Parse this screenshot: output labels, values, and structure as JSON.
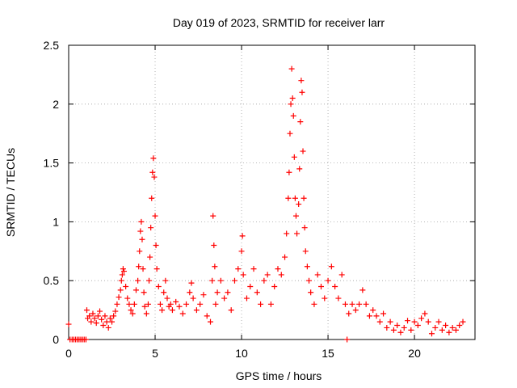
{
  "chart_data": {
    "type": "scatter",
    "title": "Day 019 of 2023, SRMTID for receiver larr",
    "xlabel": "GPS time / hours",
    "ylabel": "SRMTID / TECUs",
    "xlim": [
      0,
      23.5
    ],
    "ylim": [
      0,
      2.5
    ],
    "xticks": [
      0,
      5,
      10,
      15,
      20
    ],
    "yticks": [
      0,
      0.5,
      1,
      1.5,
      2,
      2.5
    ],
    "xtick_labels": [
      "0",
      "5",
      "10",
      "15",
      "20"
    ],
    "ytick_labels": [
      "0",
      "0.5",
      "1",
      "1.5",
      "2",
      "2.5"
    ],
    "grid": true,
    "marker": "+",
    "color": "#ff0000",
    "series": [
      {
        "name": "SRMTID",
        "points": [
          [
            0.0,
            0.13
          ],
          [
            0.08,
            0.0
          ],
          [
            0.2,
            0.0
          ],
          [
            0.3,
            0.0
          ],
          [
            0.4,
            0.0
          ],
          [
            0.5,
            0.0
          ],
          [
            0.6,
            0.0
          ],
          [
            0.7,
            0.0
          ],
          [
            0.8,
            0.0
          ],
          [
            0.9,
            0.0
          ],
          [
            1.0,
            0.0
          ],
          [
            1.05,
            0.25
          ],
          [
            1.1,
            0.18
          ],
          [
            1.2,
            0.2
          ],
          [
            1.3,
            0.15
          ],
          [
            1.4,
            0.22
          ],
          [
            1.5,
            0.18
          ],
          [
            1.6,
            0.14
          ],
          [
            1.7,
            0.2
          ],
          [
            1.8,
            0.24
          ],
          [
            1.9,
            0.17
          ],
          [
            2.0,
            0.12
          ],
          [
            2.1,
            0.2
          ],
          [
            2.2,
            0.15
          ],
          [
            2.3,
            0.1
          ],
          [
            2.4,
            0.18
          ],
          [
            2.5,
            0.15
          ],
          [
            2.6,
            0.2
          ],
          [
            2.7,
            0.24
          ],
          [
            2.8,
            0.3
          ],
          [
            2.9,
            0.36
          ],
          [
            3.0,
            0.42
          ],
          [
            3.05,
            0.5
          ],
          [
            3.1,
            0.55
          ],
          [
            3.15,
            0.6
          ],
          [
            3.2,
            0.58
          ],
          [
            3.3,
            0.45
          ],
          [
            3.4,
            0.35
          ],
          [
            3.5,
            0.3
          ],
          [
            3.6,
            0.25
          ],
          [
            3.7,
            0.22
          ],
          [
            3.8,
            0.3
          ],
          [
            3.9,
            0.42
          ],
          [
            4.0,
            0.5
          ],
          [
            4.05,
            0.62
          ],
          [
            4.1,
            0.75
          ],
          [
            4.15,
            0.92
          ],
          [
            4.2,
            1.0
          ],
          [
            4.25,
            0.85
          ],
          [
            4.3,
            0.6
          ],
          [
            4.35,
            0.4
          ],
          [
            4.4,
            0.28
          ],
          [
            4.5,
            0.22
          ],
          [
            4.6,
            0.3
          ],
          [
            4.65,
            0.5
          ],
          [
            4.7,
            0.7
          ],
          [
            4.75,
            0.95
          ],
          [
            4.8,
            1.2
          ],
          [
            4.85,
            1.42
          ],
          [
            4.9,
            1.54
          ],
          [
            4.95,
            1.38
          ],
          [
            5.0,
            1.05
          ],
          [
            5.05,
            0.8
          ],
          [
            5.1,
            0.6
          ],
          [
            5.2,
            0.45
          ],
          [
            5.3,
            0.3
          ],
          [
            5.4,
            0.25
          ],
          [
            5.5,
            0.4
          ],
          [
            5.6,
            0.5
          ],
          [
            5.7,
            0.35
          ],
          [
            5.8,
            0.28
          ],
          [
            5.9,
            0.3
          ],
          [
            6.0,
            0.25
          ],
          [
            6.2,
            0.32
          ],
          [
            6.4,
            0.28
          ],
          [
            6.6,
            0.22
          ],
          [
            6.8,
            0.3
          ],
          [
            7.0,
            0.4
          ],
          [
            7.1,
            0.48
          ],
          [
            7.2,
            0.35
          ],
          [
            7.4,
            0.25
          ],
          [
            7.6,
            0.3
          ],
          [
            7.8,
            0.38
          ],
          [
            8.0,
            0.2
          ],
          [
            8.2,
            0.15
          ],
          [
            8.3,
            0.5
          ],
          [
            8.35,
            1.05
          ],
          [
            8.4,
            0.8
          ],
          [
            8.45,
            0.62
          ],
          [
            8.5,
            0.3
          ],
          [
            8.6,
            0.4
          ],
          [
            8.8,
            0.5
          ],
          [
            9.0,
            0.35
          ],
          [
            9.2,
            0.4
          ],
          [
            9.4,
            0.25
          ],
          [
            9.6,
            0.5
          ],
          [
            9.8,
            0.6
          ],
          [
            10.0,
            0.75
          ],
          [
            10.05,
            0.88
          ],
          [
            10.1,
            0.55
          ],
          [
            10.3,
            0.35
          ],
          [
            10.5,
            0.45
          ],
          [
            10.7,
            0.6
          ],
          [
            10.9,
            0.4
          ],
          [
            11.1,
            0.3
          ],
          [
            11.3,
            0.5
          ],
          [
            11.5,
            0.55
          ],
          [
            11.7,
            0.3
          ],
          [
            11.9,
            0.45
          ],
          [
            12.1,
            0.6
          ],
          [
            12.3,
            0.55
          ],
          [
            12.5,
            0.7
          ],
          [
            12.6,
            0.9
          ],
          [
            12.7,
            1.2
          ],
          [
            12.75,
            1.42
          ],
          [
            12.8,
            1.75
          ],
          [
            12.85,
            2.0
          ],
          [
            12.9,
            2.3
          ],
          [
            12.95,
            2.05
          ],
          [
            13.0,
            1.9
          ],
          [
            13.05,
            1.55
          ],
          [
            13.1,
            1.2
          ],
          [
            13.15,
            1.05
          ],
          [
            13.2,
            0.9
          ],
          [
            13.3,
            1.15
          ],
          [
            13.35,
            1.45
          ],
          [
            13.4,
            1.85
          ],
          [
            13.45,
            2.2
          ],
          [
            13.5,
            2.1
          ],
          [
            13.55,
            1.6
          ],
          [
            13.6,
            1.2
          ],
          [
            13.65,
            0.95
          ],
          [
            13.7,
            0.75
          ],
          [
            13.8,
            0.62
          ],
          [
            13.9,
            0.5
          ],
          [
            14.0,
            0.4
          ],
          [
            14.2,
            0.3
          ],
          [
            14.4,
            0.55
          ],
          [
            14.6,
            0.45
          ],
          [
            14.8,
            0.35
          ],
          [
            15.0,
            0.5
          ],
          [
            15.2,
            0.62
          ],
          [
            15.4,
            0.45
          ],
          [
            15.6,
            0.35
          ],
          [
            15.8,
            0.55
          ],
          [
            16.0,
            0.3
          ],
          [
            16.1,
            0.0
          ],
          [
            16.2,
            0.22
          ],
          [
            16.4,
            0.3
          ],
          [
            16.6,
            0.25
          ],
          [
            16.8,
            0.3
          ],
          [
            17.0,
            0.42
          ],
          [
            17.2,
            0.3
          ],
          [
            17.4,
            0.2
          ],
          [
            17.6,
            0.25
          ],
          [
            17.8,
            0.2
          ],
          [
            18.0,
            0.15
          ],
          [
            18.2,
            0.22
          ],
          [
            18.4,
            0.1
          ],
          [
            18.6,
            0.15
          ],
          [
            18.8,
            0.08
          ],
          [
            19.0,
            0.12
          ],
          [
            19.2,
            0.06
          ],
          [
            19.4,
            0.1
          ],
          [
            19.6,
            0.16
          ],
          [
            19.8,
            0.08
          ],
          [
            20.0,
            0.15
          ],
          [
            20.2,
            0.12
          ],
          [
            20.4,
            0.18
          ],
          [
            20.6,
            0.22
          ],
          [
            20.8,
            0.15
          ],
          [
            21.0,
            0.05
          ],
          [
            21.2,
            0.1
          ],
          [
            21.4,
            0.15
          ],
          [
            21.6,
            0.08
          ],
          [
            21.8,
            0.12
          ],
          [
            22.0,
            0.06
          ],
          [
            22.2,
            0.1
          ],
          [
            22.4,
            0.08
          ],
          [
            22.6,
            0.12
          ],
          [
            22.8,
            0.15
          ]
        ]
      }
    ]
  }
}
